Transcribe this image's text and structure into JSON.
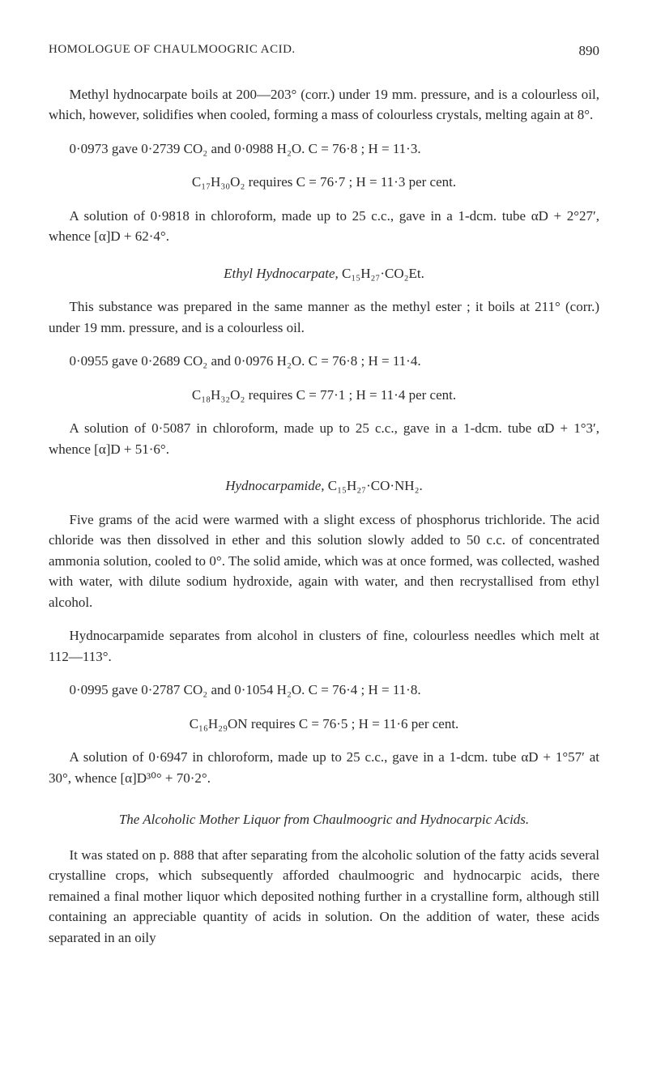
{
  "header": {
    "running_head": "HOMOLOGUE OF CHAULMOOGRIC ACID.",
    "page_number": "890"
  },
  "p1": "Methyl hydnocarpate boils at 200—203° (corr.) under 19 mm. pressure, and is a colourless oil, which, however, solidifies when cooled, forming a mass of colourless crystals, melting again at 8°.",
  "p2a": "0·0973 gave 0·2739 CO₂ and 0·0988 H₂O.   C = 76·8 ;  H = 11·3.",
  "p2b": "C₁₇H₃₀O₂ requires C = 76·7 ; H = 11·3 per cent.",
  "p3": "A solution of 0·9818 in chloroform, made up to 25 c.c., gave in a 1-dcm. tube αD + 2°27′, whence [α]D + 62·4°.",
  "h1_prefix": "Ethyl Hydnocarpate, ",
  "h1_formula": "C₁₅H₂₇·CO₂Et.",
  "p4": "This substance was prepared in the same manner as the methyl ester ; it boils at 211° (corr.) under 19 mm. pressure, and is a colourless oil.",
  "p5a": "0·0955 gave 0·2689 CO₂ and 0·0976 H₂O.   C = 76·8 ;  H = 11·4.",
  "p5b": "C₁₈H₃₂O₂ requires C = 77·1 ; H = 11·4 per cent.",
  "p6": "A solution of 0·5087 in chloroform, made up to 25 c.c., gave in a 1-dcm. tube αD + 1°3′, whence [α]D + 51·6°.",
  "h2_prefix": "Hydnocarpamide, ",
  "h2_formula": "C₁₅H₂₇·CO·NH₂.",
  "p7": "Five grams of the acid were warmed with a slight excess of phosphorus trichloride. The acid chloride was then dissolved in ether and this solution slowly added to 50 c.c. of concentrated ammonia solution, cooled to 0°. The solid amide, which was at once formed, was collected, washed with water, with dilute sodium hydroxide, again with water, and then recrystallised from ethyl alcohol.",
  "p8": "Hydnocarpamide separates from alcohol in clusters of fine, colourless needles which melt at 112—113°.",
  "p9a": "0·0995 gave 0·2787 CO₂ and 0·1054 H₂O.   C = 76·4 ;  H = 11·8.",
  "p9b": "C₁₆H₂₉ON requires C = 76·5 ; H = 11·6 per cent.",
  "p10": "A solution of 0·6947 in chloroform, made up to 25 c.c., gave in a 1-dcm. tube αD + 1°57′ at 30°, whence [α]D³⁰° + 70·2°.",
  "h3": "The Alcoholic Mother Liquor from Chaulmoogric and Hydnocarpic Acids.",
  "p11": "It was stated on p. 888 that after separating from the alcoholic solution of the fatty acids several crystalline crops, which subsequently afforded chaulmoogric and hydnocarpic acids, there remained a final mother liquor which deposited nothing further in a crystalline form, although still containing an appreciable quantity of acids in solution. On the addition of water, these acids separated in an oily"
}
